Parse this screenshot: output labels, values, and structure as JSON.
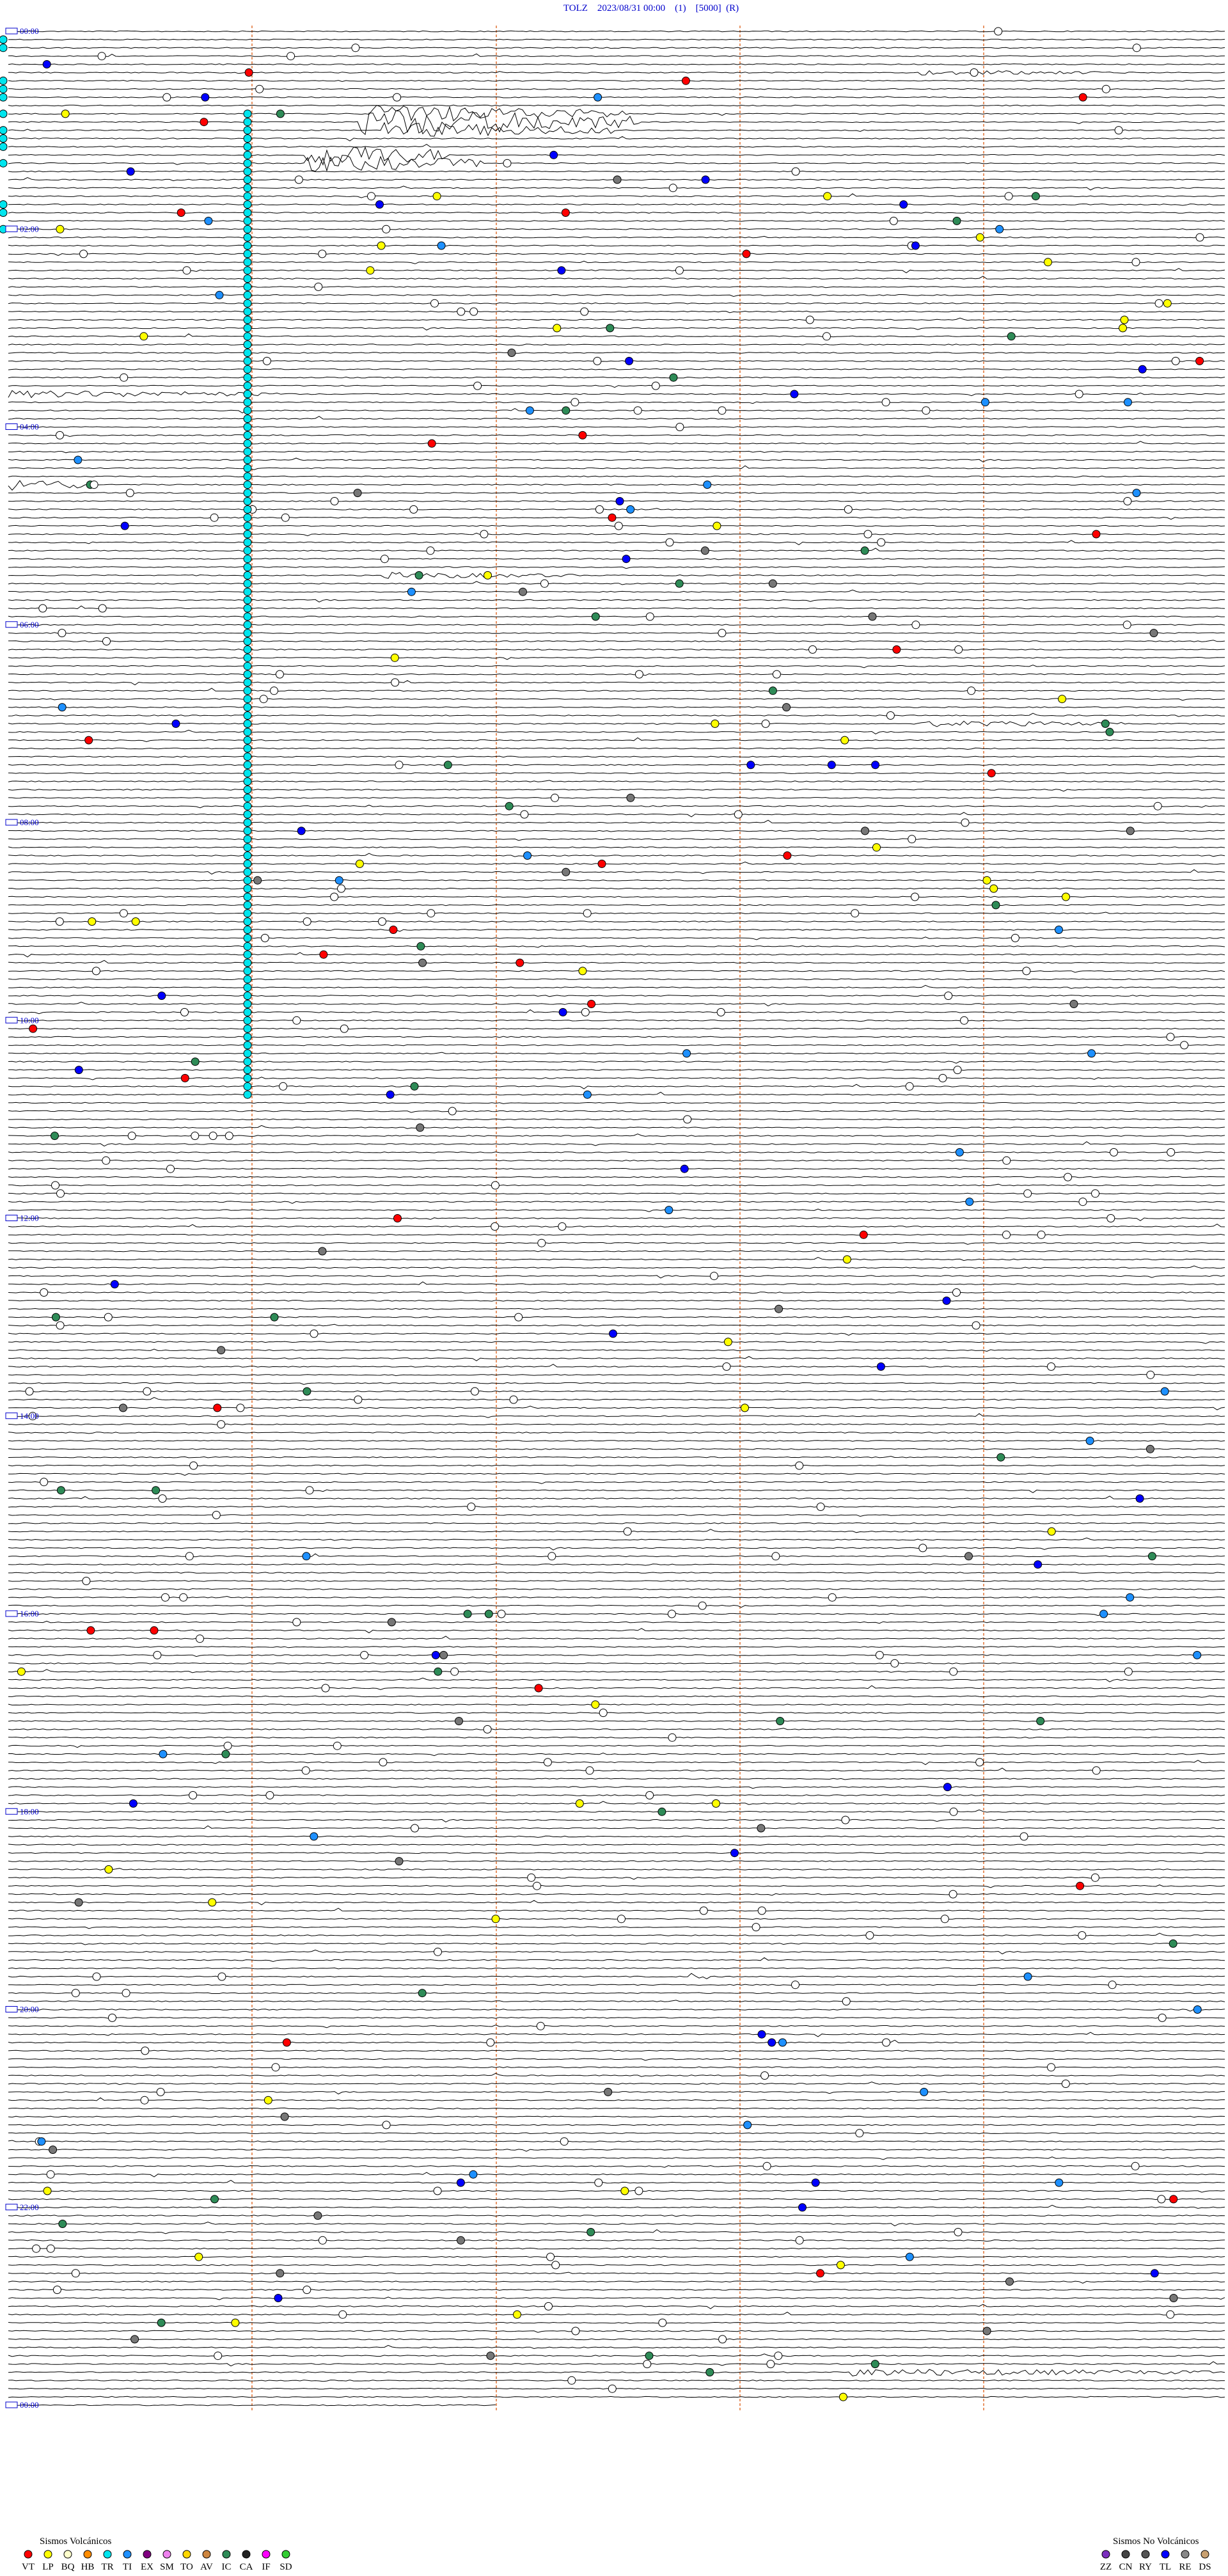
{
  "header": {
    "title": "TOLZ    2023/08/31 00:00    (1)    [5000]  (R)"
  },
  "hour_labels": [
    "00:00",
    "02:00",
    "04:00",
    "06:00",
    "08:00",
    "10:00",
    "12:00",
    "14:00",
    "16:00",
    "18:00",
    "20:00",
    "22:00",
    "00:00"
  ],
  "legend": {
    "volcanic": {
      "title": "Sismos Volcánicos",
      "items": [
        {
          "code": "VT",
          "color": "#ff0000"
        },
        {
          "code": "LP",
          "color": "#ffff00"
        },
        {
          "code": "BQ",
          "color": "#ffffcc"
        },
        {
          "code": "HB",
          "color": "#ff8c00"
        },
        {
          "code": "TR",
          "color": "#00e5ee"
        },
        {
          "code": "TI",
          "color": "#1e90ff"
        },
        {
          "code": "EX",
          "color": "#800080"
        },
        {
          "code": "SM",
          "color": "#ee82ee"
        },
        {
          "code": "TO",
          "color": "#ffd700"
        },
        {
          "code": "AV",
          "color": "#cd853f"
        },
        {
          "code": "IC",
          "color": "#2e8b57"
        },
        {
          "code": "CA",
          "color": "#222222"
        },
        {
          "code": "IF",
          "color": "#ff00ff"
        },
        {
          "code": "SD",
          "color": "#32cd32"
        }
      ]
    },
    "non_volcanic": {
      "title": "Sismos No Volcánicos",
      "items": [
        {
          "code": "ZZ",
          "color": "#7b2fbe"
        },
        {
          "code": "CN",
          "color": "#444444"
        },
        {
          "code": "RY",
          "color": "#555555"
        },
        {
          "code": "TL",
          "color": "#0000ff"
        },
        {
          "code": "RE",
          "color": "#888888"
        },
        {
          "code": "DS",
          "color": "#c8a070"
        }
      ]
    }
  }
}
